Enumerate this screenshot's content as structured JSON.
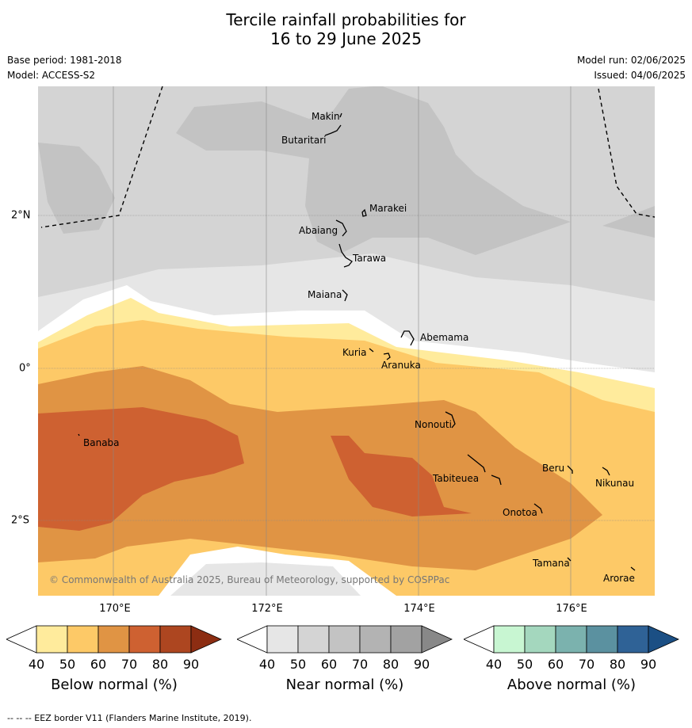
{
  "title": {
    "line1": "Tercile rainfall probabilities for",
    "line2": "16 to 29 June 2025"
  },
  "meta": {
    "base_period": "Base period: 1981-2018",
    "model": "Model: ACCESS-S2",
    "model_run": "Model run: 02/06/2025",
    "issued": "Issued: 04/06/2025"
  },
  "map": {
    "longitude_labels": [
      "170°E",
      "172°E",
      "174°E",
      "176°E"
    ],
    "latitude_labels": [
      "2°N",
      "0°",
      "2°S"
    ],
    "islands": [
      "Makin",
      "Butaritari",
      "Marakei",
      "Abaiang",
      "Tarawa",
      "Maiana",
      "Abemama",
      "Kuria",
      "Aranuka",
      "Nonouti",
      "Banaba",
      "Tabiteuea",
      "Beru",
      "Nikunau",
      "Onotoa",
      "Tamana",
      "Arorae"
    ],
    "copyright": "© Commonwealth of Australia 2025, Bureau of Meteorology, supported by COSPPac"
  },
  "legends": [
    {
      "title": "Below normal (%)",
      "ticks": [
        "40",
        "50",
        "60",
        "70",
        "80",
        "90"
      ],
      "colors": [
        "#ffffff",
        "#ffeb9c",
        "#fdc967",
        "#e09444",
        "#ce6131",
        "#ad4620",
        "#8c2d12"
      ]
    },
    {
      "title": "Near normal (%)",
      "ticks": [
        "40",
        "50",
        "60",
        "70",
        "80",
        "90"
      ],
      "colors": [
        "#ffffff",
        "#e6e6e6",
        "#d4d4d4",
        "#c3c3c3",
        "#b3b3b3",
        "#a2a2a2",
        "#888888"
      ]
    },
    {
      "title": "Above normal (%)",
      "ticks": [
        "40",
        "50",
        "60",
        "70",
        "80",
        "90"
      ],
      "colors": [
        "#ffffff",
        "#c8f6d2",
        "#a4d7be",
        "#7bb2ae",
        "#5b91a0",
        "#2f6296",
        "#1b4f84"
      ]
    }
  ],
  "footer": "--  --  -- EEZ border V11 (Flanders Marine Institute, 2019)."
}
